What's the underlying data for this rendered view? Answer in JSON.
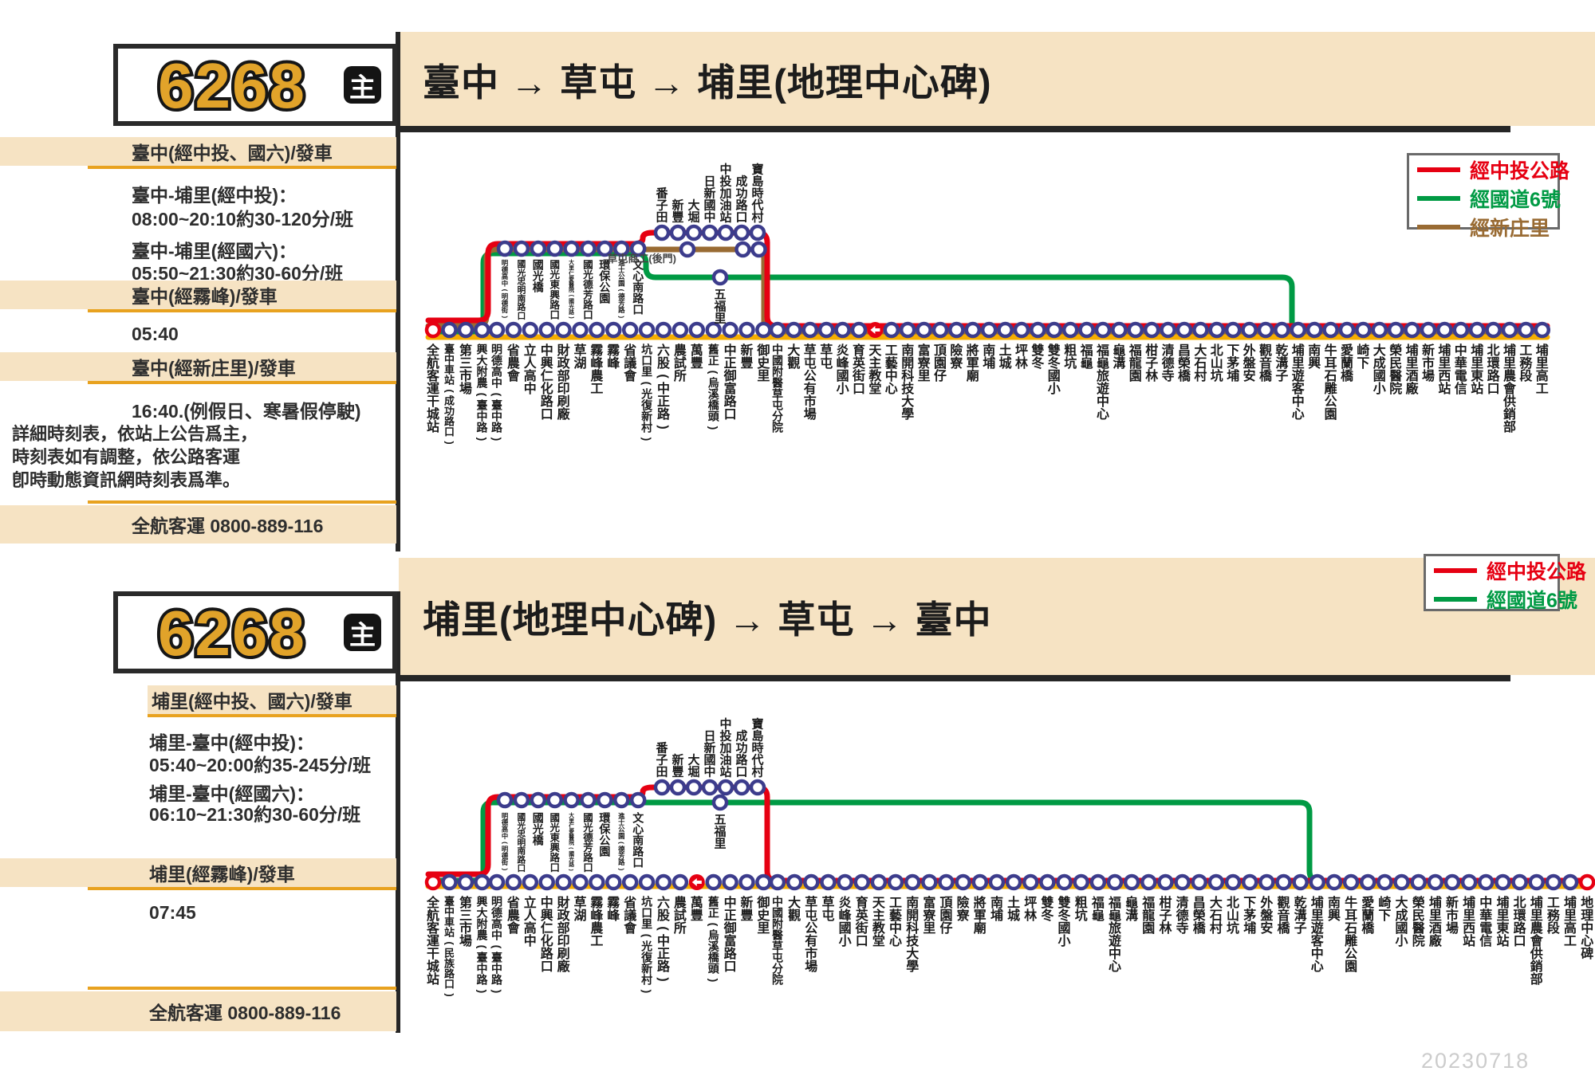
{
  "watermark": "20230718",
  "colors": {
    "beige": "#f6e3c3",
    "accent_orange": "#e8a21f",
    "route_number_orange": "#e1a32a",
    "red_line": "#e60012",
    "green_line": "#009a44",
    "brown_line": "#996b33",
    "yellow_line": "#f6ae00",
    "stop_ring": "#3c3c8c"
  },
  "panels": [
    {
      "route_number": "6268",
      "badge_label": "主",
      "title": "臺中 → 草屯 → 埔里(地理中心碑)",
      "sidebar": {
        "header1": "臺中(經中投、國六)/發車",
        "sched1_label": "臺中-埔里(經中投)：",
        "sched1_value": "08:00~20:10約30-120分/班",
        "sched2_label": "臺中-埔里(經國六)：",
        "sched2_value": "05:50~21:30約30-60分/班",
        "header2": "臺中(經霧峰)/發車",
        "time1": "05:40",
        "header3": "臺中(經新庄里)/發車",
        "time2": "16:40.(例假日、寒暑假停駛)",
        "note_lines": [
          "詳細時刻表，依站上公告爲主，",
          "時刻表如有調整，依公路客運",
          "卽時動態資訊網時刻表爲準。"
        ],
        "contact": "全航客運  0800-889-116"
      },
      "legend": [
        {
          "label": "經中投公路",
          "color": "#e60012"
        },
        {
          "label": "經國道6號",
          "color": "#009a44"
        },
        {
          "label": "經新庄里",
          "color": "#996b33"
        }
      ],
      "diagram": {
        "start_terminal": "全航客運干城站",
        "end_terminal": null,
        "shared_stops": [
          "全航客運干城站",
          "臺中車站(成功路口)",
          "第三市場",
          "興大附農(臺中路)"
        ],
        "via_wufeng_stops": [
          "明德高中(臺中路)",
          "省農會",
          "立人高中",
          "中興仁化路口",
          "財政部印刷廠",
          "草湖",
          "霧峰農工",
          "霧峰",
          "省議會",
          "坑口里(光復新村)",
          "六股(中正路)",
          "農試所",
          "萬豐",
          "舊正(烏溪橋頭)",
          "中正御富路口",
          "新豐",
          "御史里"
        ],
        "merged_stops": [
          "中國附醫草屯分院",
          "大觀",
          "草屯公有市場",
          "草屯",
          "炎峰國小",
          "育英街口",
          "天主教堂",
          "工藝中心",
          "南開科技大學",
          "富寮里",
          "頂園仔",
          "險寮",
          "將軍廟",
          "南埔",
          "土城",
          "坪林",
          "雙冬",
          "雙冬國小",
          "粗坑",
          "福龜",
          "福龜旅遊中心",
          "龜溝",
          "福龍園",
          "柑子林",
          "清德寺",
          "昌榮橋",
          "大石村",
          "北山坑",
          "下茅埔",
          "外盤安",
          "觀音橋",
          "乾溝子",
          "埔里遊客中心",
          "南興",
          "牛耳石雕公園",
          "愛蘭橋",
          "崎下",
          "大成國小",
          "榮民醫院",
          "埔里酒廠",
          "新市場",
          "埔里西站",
          "中華電信",
          "埔里東站",
          "北環路口",
          "埔里農會供銷部",
          "工務段",
          "埔里高工"
        ],
        "upper_branch_stops": [
          "明德高中(明德街)",
          "國光忠明南路口",
          "國光橋",
          "國光東興路口",
          "大里仁愛醫院(國光路)",
          "國光德芳路口",
          "環保公園",
          "進士公園(德芳路)",
          "文心南路口"
        ],
        "zhongtou_branch_stops": [
          "番子田",
          "新豐",
          "大堀",
          "日新國中",
          "中投加油站",
          "成功路口",
          "寶島時代村"
        ],
        "guodao6_stop": "五福里",
        "xinzhuangli_stop": "草屯商工(後門)",
        "oneway_marker_stop": "天主教堂",
        "green_rejoins_before": "埔里遊客中心"
      }
    },
    {
      "route_number": "6268",
      "badge_label": "主",
      "title": "埔里(地理中心碑) → 草屯 → 臺中",
      "sidebar": {
        "header1": "埔里(經中投、國六)/發車",
        "sched1_label": "埔里-臺中(經中投)：",
        "sched1_value": "05:40~20:00約35-245分/班",
        "sched2_label": "埔里-臺中(經國六)：",
        "sched2_value": "06:10~21:30約30-60分/班",
        "header2": "埔里(經霧峰)/發車",
        "time1": "07:45",
        "contact": "全航客運  0800-889-116"
      },
      "legend": [
        {
          "label": "經中投公路",
          "color": "#e60012"
        },
        {
          "label": "經國道6號",
          "color": "#009a44"
        }
      ],
      "diagram": {
        "start_terminal": "全航客運干城站",
        "end_terminal": "地理中心碑",
        "shared_stops": [
          "全航客運干城站",
          "臺中車站(民族路口)",
          "第三市場",
          "興大附農(臺中路)"
        ],
        "via_wufeng_stops": [
          "明德高中(臺中路)",
          "省農會",
          "立人高中",
          "中興仁化路口",
          "財政部印刷廠",
          "草湖",
          "霧峰農工",
          "霧峰",
          "省議會",
          "坑口里(光復新村)",
          "六股(中正路)",
          "農試所",
          "萬豐",
          "舊正(烏溪橋頭)",
          "中正御富路口",
          "新豐",
          "御史里"
        ],
        "merged_stops": [
          "中國附醫草屯分院",
          "大觀",
          "草屯公有市場",
          "草屯",
          "炎峰國小",
          "育英街口",
          "天主教堂",
          "工藝中心",
          "南開科技大學",
          "富寮里",
          "頂園仔",
          "險寮",
          "將軍廟",
          "南埔",
          "土城",
          "坪林",
          "雙冬",
          "雙冬國小",
          "粗坑",
          "福龜",
          "福龜旅遊中心",
          "龜溝",
          "福龍園",
          "柑子林",
          "清德寺",
          "昌榮橋",
          "大石村",
          "北山坑",
          "下茅埔",
          "外盤安",
          "觀音橋",
          "乾溝子",
          "埔里遊客中心",
          "南興",
          "牛耳石雕公園",
          "愛蘭橋",
          "崎下",
          "大成國小",
          "榮民醫院",
          "埔里酒廠",
          "新市場",
          "埔里西站",
          "中華電信",
          "埔里東站",
          "北環路口",
          "埔里農會供銷部",
          "工務段",
          "埔里高工",
          "地理中心碑"
        ],
        "upper_branch_stops": [
          "明德高中(明德街)",
          "國光忠明南路口",
          "國光橋",
          "國光東興路口",
          "大里仁愛醫院(國光路)",
          "國光德芳路口",
          "環保公園",
          "進士公園(德芳路)",
          "文心南路口"
        ],
        "zhongtou_branch_stops": [
          "番子田",
          "新豐",
          "大堀",
          "日新國中",
          "中投加油站",
          "成功路口",
          "寶島時代村"
        ],
        "guodao6_stop": "五福里",
        "xinzhuangli_stop": null,
        "oneway_marker_stop": "萬豐",
        "green_rejoins_before": "埔里遊客中心"
      }
    }
  ]
}
